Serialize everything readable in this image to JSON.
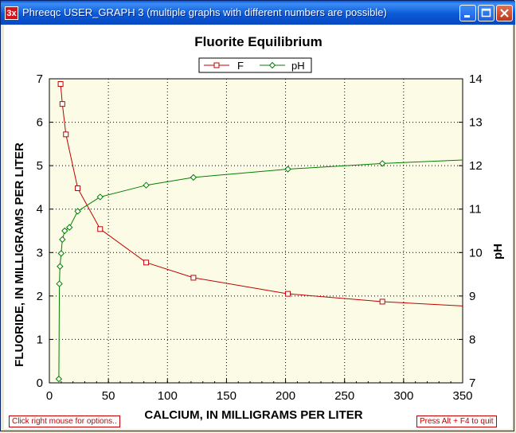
{
  "window": {
    "title": "Phreeqc USER_GRAPH 3 (multiple graphs with different numbers are possible)",
    "icon_label": "3x"
  },
  "status": {
    "left": "Click right mouse for options..",
    "right": "Press Alt + F4 to quit"
  },
  "colors": {
    "F": "#c00000",
    "pH": "#008000",
    "plot_bg": "#fcfce6"
  },
  "chart_data": {
    "type": "line",
    "title": "Fluorite Equilibrium",
    "xlabel": "CALCIUM, IN MILLIGRAMS PER LITER",
    "ylabel": "FLUORIDE, IN MILLIGRAMS PER LITER",
    "y2label": "pH",
    "xlim": [
      0,
      350
    ],
    "ylim": [
      0,
      7
    ],
    "y2lim": [
      7,
      14
    ],
    "xticks": [
      0,
      50,
      100,
      150,
      200,
      250,
      300,
      350
    ],
    "yticks": [
      0,
      1,
      2,
      3,
      4,
      5,
      6,
      7
    ],
    "y2ticks": [
      7,
      8,
      9,
      10,
      11,
      12,
      13,
      14
    ],
    "grid": true,
    "legend": "top-center",
    "series": [
      {
        "name": "F",
        "axis": "left",
        "marker": "square",
        "x": [
          9.5,
          11,
          14,
          24,
          43,
          82,
          122,
          202,
          282,
          350
        ],
        "y": [
          6.88,
          6.42,
          5.72,
          4.48,
          3.54,
          2.77,
          2.42,
          2.05,
          1.87,
          1.77
        ]
      },
      {
        "name": "pH",
        "axis": "right",
        "marker": "diamond",
        "x": [
          8,
          8.5,
          9,
          10,
          11,
          13,
          17,
          24,
          43,
          82,
          122,
          202,
          282,
          350
        ],
        "y": [
          7.09,
          9.28,
          9.68,
          9.98,
          10.3,
          10.5,
          10.58,
          10.95,
          11.28,
          11.55,
          11.73,
          11.92,
          12.05,
          12.13
        ]
      }
    ]
  }
}
